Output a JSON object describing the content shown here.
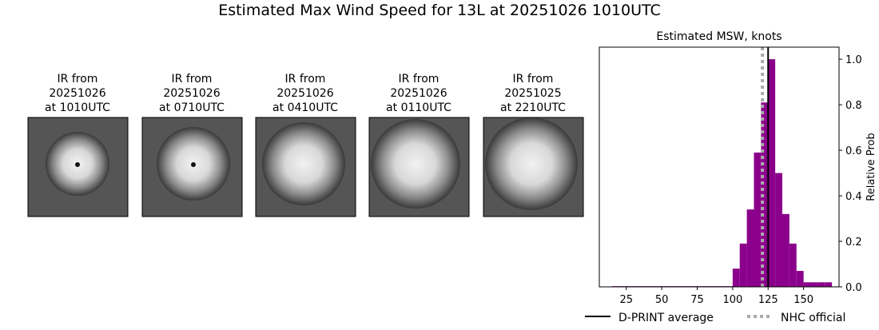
{
  "title": "Estimated Max Wind Speed for 13L at 20251026 1010UTC",
  "panels": [
    {
      "lines": [
        "IR from",
        "20251026",
        "at 1010UTC"
      ]
    },
    {
      "lines": [
        "IR from",
        "20251026",
        "at 0710UTC"
      ]
    },
    {
      "lines": [
        "IR from",
        "20251026",
        "at 0410UTC"
      ]
    },
    {
      "lines": [
        "IR from",
        "20251026",
        "at 0110UTC"
      ]
    },
    {
      "lines": [
        "IR from",
        "20251025",
        "at 2210UTC"
      ]
    }
  ],
  "chart_data": {
    "type": "histogram",
    "title": "Estimated MSW, knots",
    "y_label": "Relative Prob",
    "color": "#8b008b",
    "bins": [
      15,
      20,
      25,
      30,
      35,
      40,
      45,
      50,
      55,
      60,
      65,
      70,
      75,
      80,
      85,
      90,
      95,
      100,
      105,
      110,
      115,
      120,
      125,
      130,
      135,
      140,
      145,
      150,
      155,
      160,
      165,
      170
    ],
    "values": [
      0.003,
      0.003,
      0.003,
      0.003,
      0.003,
      0.003,
      0.003,
      0.003,
      0.003,
      0.003,
      0.003,
      0.003,
      0.003,
      0.003,
      0.003,
      0.003,
      0.003,
      0.08,
      0.19,
      0.34,
      0.59,
      0.81,
      1.0,
      0.5,
      0.32,
      0.19,
      0.07,
      0.02,
      0.02,
      0.02,
      0.02
    ],
    "xlim": [
      6,
      175
    ],
    "ylim": [
      0,
      1.053
    ],
    "xticks": [
      25,
      50,
      75,
      100,
      125,
      150
    ],
    "yticks": [
      {
        "value": 0,
        "label": "0.0"
      },
      0.2,
      0.4,
      0.6,
      0.8,
      {
        "value": 1,
        "label": "1.0"
      }
    ],
    "reference_lines": [
      {
        "name": "D-PRINT average",
        "value": 125,
        "color": "#000000",
        "style": "solid"
      },
      {
        "name": "NHC official",
        "value": 121,
        "color": "#aaaaaa",
        "style": "dotted"
      }
    ]
  }
}
